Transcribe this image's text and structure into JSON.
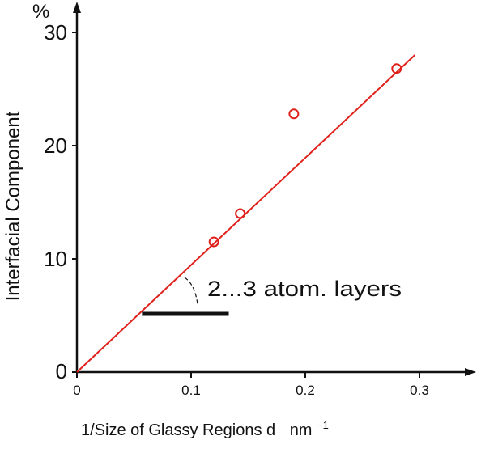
{
  "chart_data": {
    "type": "scatter",
    "title": "",
    "xlabel": "1/Size of Glassy Regions d",
    "xunit": "nm",
    "xunit_exp": "−1",
    "ylabel": "Interfacial Component",
    "yunit": "%",
    "xlim": [
      0,
      0.31
    ],
    "ylim": [
      0,
      31
    ],
    "xticks": [
      "0",
      "0.1",
      "0.2",
      "0.3"
    ],
    "yticks": [
      "0",
      "10",
      "20",
      "30"
    ],
    "grid": false,
    "points": [
      {
        "x": 0.12,
        "y": 11.5
      },
      {
        "x": 0.143,
        "y": 14.0
      },
      {
        "x": 0.19,
        "y": 22.8
      },
      {
        "x": 0.28,
        "y": 26.8
      }
    ],
    "fit_line": {
      "x": [
        0,
        0.296
      ],
      "y": [
        0,
        28.0
      ]
    },
    "annotation": {
      "text": "2...3 atom. layers",
      "bar_x": [
        0.057,
        0.133
      ],
      "bar_y": 5.5
    },
    "colors": {
      "data": "#e0201a",
      "axis": "#111111"
    }
  }
}
